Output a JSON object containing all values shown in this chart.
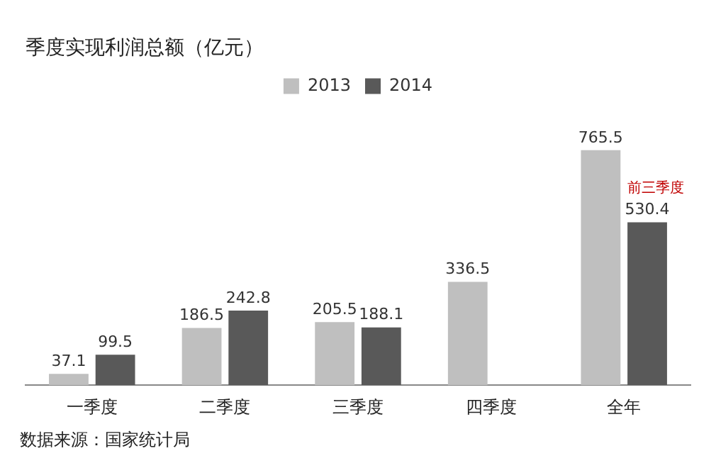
{
  "chart_data": {
    "type": "bar",
    "title": "季度实现利润总额（亿元）",
    "categories": [
      "一季度",
      "二季度",
      "三季度",
      "四季度",
      "全年"
    ],
    "series": [
      {
        "name": "2013",
        "color": "#bfbfbf",
        "values": [
          37.1,
          186.5,
          205.5,
          336.5,
          765.5
        ]
      },
      {
        "name": "2014",
        "color": "#595959",
        "values": [
          99.5,
          242.8,
          188.1,
          null,
          530.4
        ]
      }
    ],
    "data_labels": true,
    "legend": "top",
    "grid": false,
    "annotations": [
      "数据来源：国家统计局",
      {
        "text": "前三季度",
        "x": "全年",
        "y": 530.4
      }
    ]
  }
}
